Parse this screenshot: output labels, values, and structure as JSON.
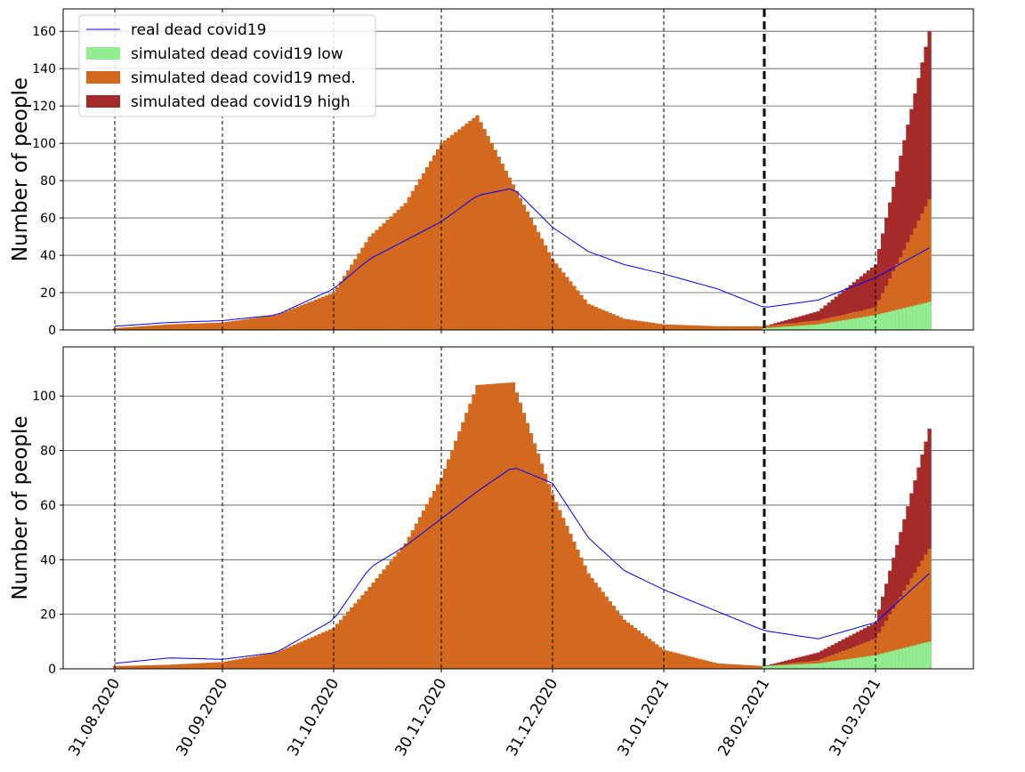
{
  "chart_data": {
    "type": "bar",
    "x_dates": [
      "31.08.2020",
      "30.09.2020",
      "31.10.2020",
      "30.11.2020",
      "31.12.2020",
      "31.01.2021",
      "28.02.2021",
      "31.03.2021"
    ],
    "legend": [
      {
        "name": "real dead covid19",
        "kind": "line",
        "color": "#0000ff"
      },
      {
        "name": "simulated dead covid19 low",
        "kind": "patch",
        "color": "#90ee90"
      },
      {
        "name": "simulated dead covid19 med.",
        "kind": "patch",
        "color": "#d2691e"
      },
      {
        "name": "simulated dead covid19 high",
        "kind": "patch",
        "color": "#a52a2a"
      }
    ],
    "legend_position": "upper-left",
    "forecast_start_date": "28.02.2021",
    "panels": [
      {
        "ylabel": "Number of people",
        "ylim": [
          0,
          172
        ],
        "yticks": [
          0,
          20,
          40,
          60,
          80,
          100,
          120,
          140,
          160
        ],
        "grid": "horizontal",
        "series": [
          {
            "name": "real dead covid19",
            "type": "line",
            "dates": [
              "31.08.2020",
              "15.09.2020",
              "30.09.2020",
              "15.10.2020",
              "31.10.2020",
              "10.11.2020",
              "20.11.2020",
              "30.11.2020",
              "10.12.2020",
              "20.12.2020",
              "31.12.2020",
              "10.01.2021",
              "20.01.2021",
              "31.01.2021",
              "15.02.2021",
              "28.02.2021",
              "15.03.2021",
              "31.03.2021",
              "15.04.2021"
            ],
            "values": [
              2,
              4,
              5,
              8,
              22,
              38,
              48,
              58,
              72,
              76,
              55,
              42,
              35,
              30,
              22,
              12,
              16,
              28,
              44
            ]
          },
          {
            "name": "simulated dead covid19 med.",
            "type": "bar",
            "dates": [
              "31.08.2020",
              "15.09.2020",
              "30.09.2020",
              "15.10.2020",
              "31.10.2020",
              "10.11.2020",
              "20.11.2020",
              "30.11.2020",
              "10.12.2020",
              "20.12.2020",
              "31.12.2020",
              "10.01.2021",
              "20.01.2021",
              "31.01.2021",
              "15.02.2021",
              "28.02.2021",
              "15.03.2021",
              "31.03.2021",
              "15.04.2021"
            ],
            "values": [
              1,
              3,
              4,
              8,
              20,
              50,
              68,
              100,
              115,
              78,
              38,
              14,
              6,
              3,
              2,
              2,
              5,
              12,
              70
            ]
          },
          {
            "name": "simulated dead covid19 low",
            "type": "bar",
            "dates": [
              "28.02.2021",
              "15.03.2021",
              "31.03.2021",
              "15.04.2021"
            ],
            "values": [
              1,
              3,
              8,
              15
            ]
          },
          {
            "name": "simulated dead covid19 high",
            "type": "bar",
            "dates": [
              "28.02.2021",
              "15.03.2021",
              "31.03.2021",
              "15.04.2021"
            ],
            "values": [
              2,
              10,
              35,
              160
            ]
          }
        ]
      },
      {
        "ylabel": "Number of people",
        "ylim": [
          0,
          118
        ],
        "yticks": [
          0,
          20,
          40,
          60,
          80,
          100
        ],
        "grid": "horizontal",
        "series": [
          {
            "name": "real dead covid19",
            "type": "line",
            "dates": [
              "31.08.2020",
              "15.09.2020",
              "30.09.2020",
              "15.10.2020",
              "31.10.2020",
              "10.11.2020",
              "20.11.2020",
              "30.11.2020",
              "10.12.2020",
              "20.12.2020",
              "31.12.2020",
              "10.01.2021",
              "20.01.2021",
              "31.01.2021",
              "15.02.2021",
              "28.02.2021",
              "15.03.2021",
              "31.03.2021",
              "15.04.2021"
            ],
            "values": [
              2,
              4,
              3.5,
              6,
              18,
              37,
              45,
              55,
              65,
              74,
              68,
              48,
              36,
              29,
              21,
              14,
              11,
              17,
              35
            ]
          },
          {
            "name": "simulated dead covid19 med.",
            "type": "bar",
            "dates": [
              "31.08.2020",
              "15.09.2020",
              "30.09.2020",
              "15.10.2020",
              "31.10.2020",
              "10.11.2020",
              "20.11.2020",
              "30.11.2020",
              "10.12.2020",
              "20.12.2020",
              "31.12.2020",
              "10.01.2021",
              "20.01.2021",
              "31.01.2021",
              "15.02.2021",
              "28.02.2021",
              "15.03.2021",
              "31.03.2021",
              "15.04.2021"
            ],
            "values": [
              1,
              1.5,
              2.5,
              6,
              15,
              30,
              46,
              70,
              104,
              105,
              64,
              35,
              18,
              7,
              2,
              1,
              3,
              11,
              44
            ]
          },
          {
            "name": "simulated dead covid19 low",
            "type": "bar",
            "dates": [
              "28.02.2021",
              "15.03.2021",
              "31.03.2021",
              "15.04.2021"
            ],
            "values": [
              1,
              2,
              5,
              10
            ]
          },
          {
            "name": "simulated dead covid19 high",
            "type": "bar",
            "dates": [
              "28.02.2021",
              "15.03.2021",
              "31.03.2021",
              "15.04.2021"
            ],
            "values": [
              1,
              6,
              17,
              88
            ]
          }
        ]
      }
    ]
  }
}
